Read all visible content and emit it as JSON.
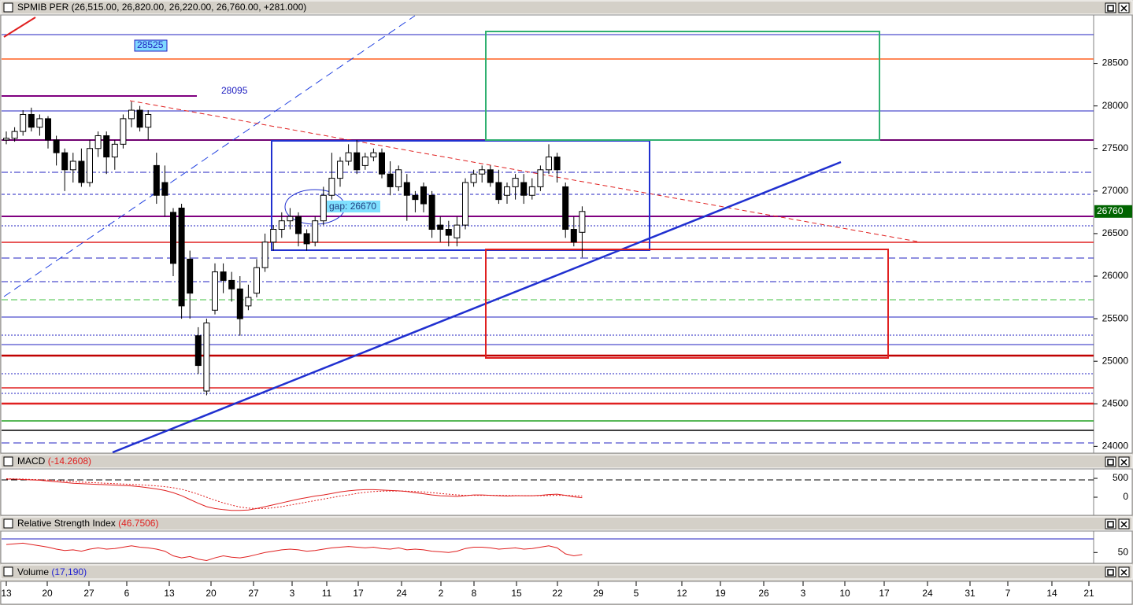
{
  "chart_data": [
    {
      "type": "candlestick",
      "title": "SPMIB PER (26,515.00, 26,820.00, 26,220.00, 26,760.00, +281.000)",
      "open": [
        27600,
        27620,
        27700,
        27900,
        27750,
        27850,
        27600,
        27450,
        27250,
        27350,
        27100,
        27500,
        27650,
        27400,
        27550,
        27850,
        27950,
        27750,
        27300,
        27100,
        26750,
        26800,
        26200,
        25300,
        24650,
        25600,
        26050,
        25950,
        25850,
        25650,
        25800,
        26100,
        26400,
        26550,
        26650,
        26700,
        26500,
        26400,
        26650,
        26950,
        27150,
        27350,
        27450,
        27300,
        27400,
        27450,
        27200,
        27050,
        27100,
        26950,
        27050,
        26950,
        26600,
        26550,
        26450,
        26600,
        27100,
        27200,
        27250,
        27100,
        26950,
        27050,
        27100,
        26950,
        27050,
        27250,
        27400,
        27050,
        26550,
        26515
      ],
      "high": [
        27700,
        27750,
        27950,
        27980,
        27900,
        27880,
        27650,
        27500,
        27450,
        27500,
        27600,
        27700,
        27700,
        27600,
        27900,
        28050,
        28000,
        27950,
        27450,
        27300,
        26800,
        26850,
        26300,
        25400,
        25500,
        26150,
        26150,
        26050,
        26000,
        25900,
        26200,
        26500,
        26600,
        26750,
        26800,
        26750,
        26550,
        26700,
        27050,
        27450,
        27400,
        27550,
        27600,
        27450,
        27500,
        27500,
        27350,
        27300,
        27200,
        27000,
        27100,
        27000,
        26700,
        26650,
        26700,
        27150,
        27250,
        27300,
        27300,
        27250,
        27100,
        27200,
        27200,
        27150,
        27300,
        27550,
        27450,
        27100,
        26700,
        26820
      ],
      "low": [
        27550,
        27580,
        27650,
        27700,
        27650,
        27500,
        27300,
        27000,
        27100,
        27050,
        27050,
        27400,
        27200,
        27250,
        27500,
        27750,
        27700,
        27600,
        26850,
        26700,
        26000,
        25500,
        25500,
        24850,
        24600,
        25550,
        25800,
        25700,
        25300,
        25600,
        25750,
        26050,
        26300,
        26450,
        26550,
        26350,
        26300,
        26350,
        26600,
        26900,
        27050,
        27300,
        27200,
        27250,
        27350,
        27150,
        26950,
        27000,
        26650,
        26750,
        26750,
        26450,
        26400,
        26350,
        26350,
        26550,
        27050,
        27100,
        27050,
        26850,
        26850,
        26900,
        26850,
        26900,
        27000,
        27200,
        27100,
        26450,
        26350,
        26220
      ],
      "close": [
        27620,
        27700,
        27900,
        27750,
        27850,
        27600,
        27450,
        27250,
        27350,
        27100,
        27500,
        27650,
        27400,
        27550,
        27850,
        27950,
        27750,
        27900,
        26950,
        26950,
        26150,
        25650,
        25800,
        24950,
        25450,
        26050,
        25950,
        25850,
        25500,
        25750,
        26100,
        26400,
        26550,
        26650,
        26700,
        26500,
        26380,
        26650,
        26950,
        27150,
        27350,
        27450,
        27250,
        27400,
        27450,
        27200,
        27050,
        27250,
        26950,
        26900,
        26850,
        26550,
        26550,
        26480,
        26600,
        27100,
        27200,
        27250,
        27100,
        26900,
        27050,
        27150,
        26950,
        27050,
        27250,
        27400,
        27250,
        26550,
        26400,
        26760
      ],
      "ylim": [
        23920,
        29060
      ],
      "yticks": [
        24000,
        24500,
        25000,
        25500,
        26000,
        26500,
        27000,
        27500,
        28000,
        28500
      ],
      "x_labels": [
        "13",
        "20",
        "27",
        "6",
        "13",
        "20",
        "27",
        "3",
        "11",
        "17",
        "24",
        "2",
        "8",
        "15",
        "22",
        "29",
        "5",
        "12",
        "19",
        "26",
        "3",
        "10",
        "17",
        "24",
        "31",
        "7",
        "14",
        "21"
      ],
      "annotations": [
        "28525",
        "28095",
        "gap: 26670"
      ],
      "last_price_label": "26760"
    },
    {
      "type": "line",
      "title": "MACD",
      "subtitle": "(-14.2608)",
      "series": [
        {
          "color": "#e02020",
          "style": "solid",
          "values": [
            480,
            480,
            470,
            460,
            450,
            430,
            410,
            390,
            370,
            360,
            350,
            340,
            330,
            320,
            310,
            300,
            280,
            250,
            220,
            180,
            120,
            40,
            -60,
            -160,
            -250,
            -300,
            -330,
            -350,
            -350,
            -340,
            -300,
            -250,
            -200,
            -150,
            -100,
            -50,
            -10,
            30,
            60,
            100,
            140,
            170,
            190,
            200,
            200,
            190,
            180,
            170,
            150,
            120,
            90,
            60,
            40,
            30,
            20,
            40,
            60,
            60,
            50,
            40,
            30,
            40,
            40,
            40,
            50,
            70,
            80,
            50,
            10,
            -14
          ]
        },
        {
          "color": "#e02020",
          "style": "dotted",
          "values": [
            490,
            485,
            480,
            470,
            465,
            455,
            445,
            430,
            415,
            400,
            390,
            380,
            370,
            360,
            350,
            340,
            330,
            315,
            300,
            280,
            250,
            210,
            150,
            80,
            0,
            -80,
            -150,
            -210,
            -260,
            -290,
            -300,
            -300,
            -280,
            -250,
            -210,
            -170,
            -130,
            -90,
            -50,
            -10,
            30,
            60,
            100,
            130,
            150,
            160,
            165,
            165,
            160,
            150,
            140,
            120,
            100,
            80,
            60,
            50,
            50,
            50,
            50,
            50,
            45,
            45,
            40,
            40,
            40,
            45,
            50,
            50,
            40,
            30
          ]
        }
      ],
      "ylim": [
        -480,
        730
      ],
      "yticks": [
        0,
        500
      ]
    },
    {
      "type": "line",
      "title": "Relative Strength Index",
      "subtitle": "(46.7506)",
      "series": [
        {
          "color": "#e02020",
          "style": "solid",
          "values": [
            62,
            63,
            64,
            62,
            60,
            58,
            55,
            53,
            54,
            52,
            55,
            57,
            55,
            56,
            58,
            60,
            58,
            57,
            55,
            52,
            45,
            42,
            44,
            40,
            38,
            42,
            45,
            43,
            42,
            44,
            47,
            50,
            52,
            54,
            55,
            54,
            52,
            53,
            55,
            57,
            58,
            59,
            58,
            57,
            58,
            56,
            55,
            57,
            54,
            55,
            54,
            52,
            51,
            50,
            52,
            56,
            58,
            58,
            57,
            55,
            56,
            57,
            55,
            56,
            58,
            60,
            57,
            48,
            45,
            47
          ]
        }
      ],
      "ylim": [
        35,
        81
      ],
      "yticks": [
        50
      ]
    },
    {
      "type": "bar",
      "title": "Volume",
      "subtitle": "(17,190)"
    }
  ]
}
